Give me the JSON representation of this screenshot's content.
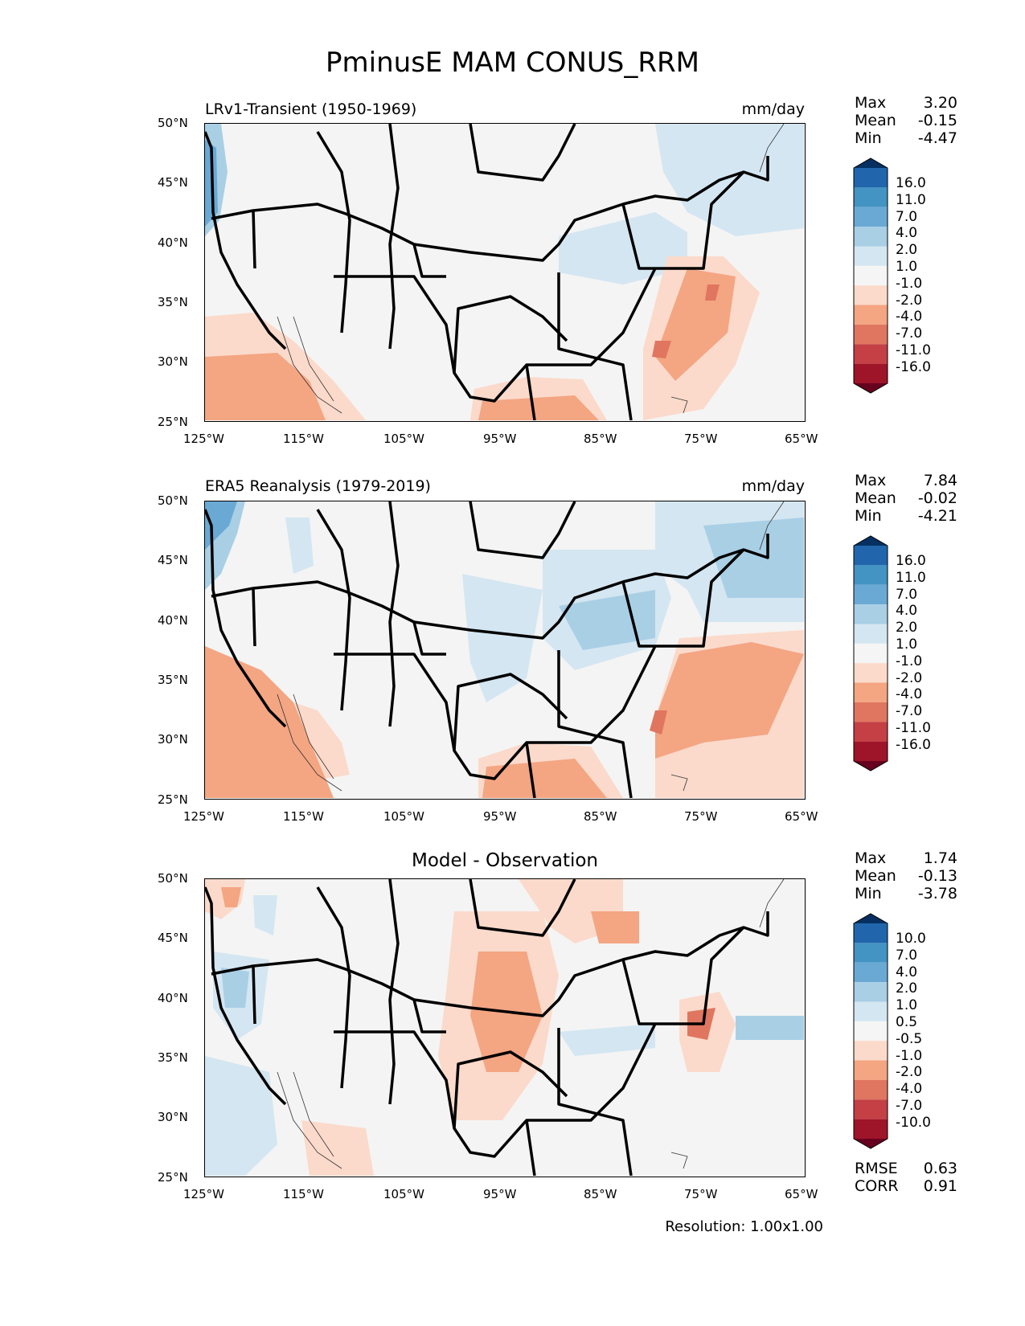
{
  "title": "PminusE MAM CONUS_RRM",
  "units": "mm/day",
  "x_ticks": [
    "125°W",
    "115°W",
    "105°W",
    "95°W",
    "85°W",
    "75°W",
    "65°W"
  ],
  "y_ticks": [
    "50°N",
    "45°N",
    "40°N",
    "35°N",
    "30°N",
    "25°N"
  ],
  "panels": [
    {
      "id": "model",
      "subtitle_left": "LRv1-Transient (1950-1969)",
      "subtitle_right": "mm/day",
      "subtitle_center": "",
      "stats": {
        "max_label": "Max",
        "max": "3.20",
        "mean_label": "Mean",
        "mean": "-0.15",
        "min_label": "Min",
        "min": "-4.47"
      }
    },
    {
      "id": "obs",
      "subtitle_left": "ERA5 Reanalysis (1979-2019)",
      "subtitle_right": "mm/day",
      "subtitle_center": "",
      "stats": {
        "max_label": "Max",
        "max": "7.84",
        "mean_label": "Mean",
        "mean": "-0.02",
        "min_label": "Min",
        "min": "-4.21"
      }
    },
    {
      "id": "diff",
      "subtitle_left": "",
      "subtitle_right": "",
      "subtitle_center": "Model - Observation",
      "stats": {
        "max_label": "Max",
        "max": "1.74",
        "mean_label": "Mean",
        "mean": "-0.13",
        "min_label": "Min",
        "min": "-3.78"
      }
    }
  ],
  "colorbar_main": {
    "levels": [
      "16.0",
      "11.0",
      "7.0",
      "4.0",
      "2.0",
      "1.0",
      "-1.0",
      "-2.0",
      "-4.0",
      "-7.0",
      "-11.0",
      "-16.0"
    ],
    "colors": [
      "#053061",
      "#2166ac",
      "#4393c3",
      "#6aa9d4",
      "#a9cfe5",
      "#d4e6f1",
      "#f5f5f5",
      "#fbdacb",
      "#f4a582",
      "#e07660",
      "#c44044",
      "#9e1428",
      "#67001f"
    ]
  },
  "colorbar_diff": {
    "levels": [
      "10.0",
      "7.0",
      "4.0",
      "2.0",
      "1.0",
      "0.5",
      "-0.5",
      "-1.0",
      "-2.0",
      "-4.0",
      "-7.0",
      "-10.0"
    ],
    "colors": [
      "#053061",
      "#2166ac",
      "#4393c3",
      "#6aa9d4",
      "#a9cfe5",
      "#d4e6f1",
      "#f5f5f5",
      "#fbdacb",
      "#f4a582",
      "#e07660",
      "#c44044",
      "#9e1428",
      "#67001f"
    ]
  },
  "metrics": {
    "rmse_label": "RMSE",
    "rmse": "0.63",
    "corr_label": "CORR",
    "corr": "0.91"
  },
  "resolution": "Resolution: 1.00x1.00"
}
